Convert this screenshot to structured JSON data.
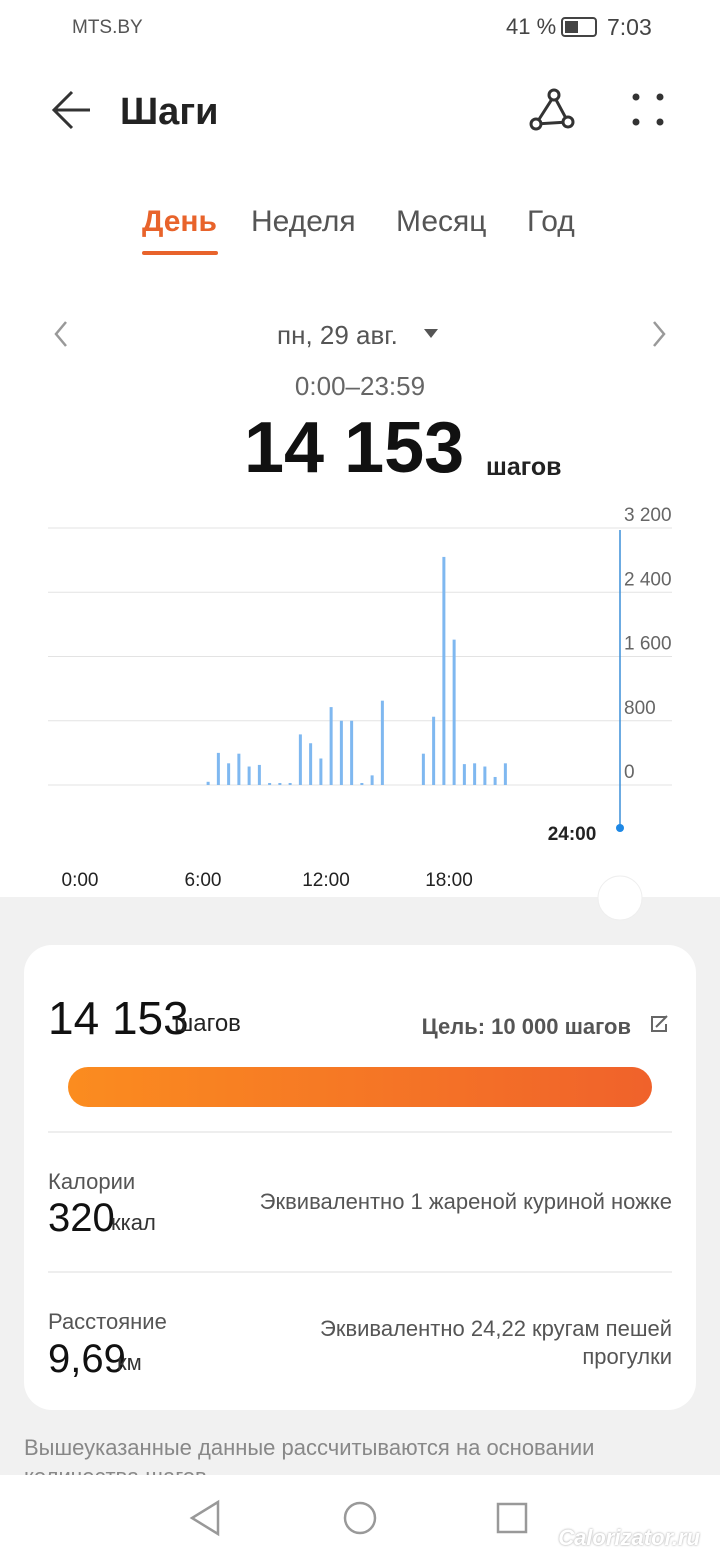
{
  "status_bar": {
    "carrier": "MTS.BY",
    "battery": "41 %",
    "time": "7:03"
  },
  "header": {
    "title": "Шаги"
  },
  "tabs": [
    "День",
    "Неделя",
    "Месяц",
    "Год"
  ],
  "active_tab": 0,
  "date": "пн, 29 авг.",
  "time_range": "0:00–23:59",
  "total": "14 153",
  "total_unit": "шагов",
  "chart_data": {
    "type": "histogram",
    "color": "#7fb8f0",
    "bins": [
      0,
      0.5,
      1,
      1.5,
      2,
      2.5,
      3,
      3.5,
      4,
      4.5,
      5,
      5.5,
      6,
      6.5,
      7,
      7.5,
      8,
      8.5,
      9,
      9.5,
      10,
      10.5,
      11,
      11.5,
      12,
      12.5,
      13,
      13.5,
      14,
      14.5,
      15,
      15.5,
      16,
      16.5,
      17,
      17.5,
      18,
      18.5,
      19,
      19.5,
      20,
      20.5,
      21,
      21.5,
      22,
      22.5,
      23,
      23.5,
      24
    ],
    "values": [
      0,
      0,
      0,
      0,
      0,
      0,
      0,
      0,
      0,
      0,
      0,
      0,
      40,
      400,
      270,
      390,
      230,
      250,
      25,
      25,
      25,
      630,
      520,
      330,
      970,
      800,
      800,
      25,
      120,
      1050,
      0,
      0,
      0,
      390,
      850,
      2840,
      1810,
      260,
      270,
      230,
      100,
      270,
      0,
      0,
      0,
      0,
      0,
      0
    ],
    "xlim": [
      0,
      24
    ],
    "xticks": [
      {
        "value": 0,
        "label": "0:00"
      },
      {
        "value": 6,
        "label": "6:00"
      },
      {
        "value": 12,
        "label": "12:00"
      },
      {
        "value": 18,
        "label": "18:00"
      }
    ],
    "ylim": [
      0,
      3200
    ],
    "yticks": [
      0,
      {
        "value": 800,
        "label": "800"
      },
      {
        "value": 1600,
        "label": "1 600"
      },
      {
        "value": 2400,
        "label": "2 400"
      },
      {
        "value": 3200,
        "label": "3 200"
      }
    ],
    "grid": true,
    "cursor_label": "24:00"
  },
  "summary": {
    "steps": "14 153",
    "steps_unit": "шагов",
    "goal": "Цель: 10 000 шагов",
    "calories_label": "Калории",
    "calories": "320",
    "calories_unit": "ккал",
    "calories_equiv": "Эквивалентно 1 жареной куриной ножке",
    "distance_label": "Расстояние",
    "distance": "9,69",
    "distance_unit": "км",
    "distance_equiv": [
      "Эквивалентно 24,22 кругам пешей",
      "прогулки"
    ]
  },
  "footnote": "Вышеуказанные данные рассчитываются на основании количества шагов",
  "watermark": "Calorizator.ru"
}
